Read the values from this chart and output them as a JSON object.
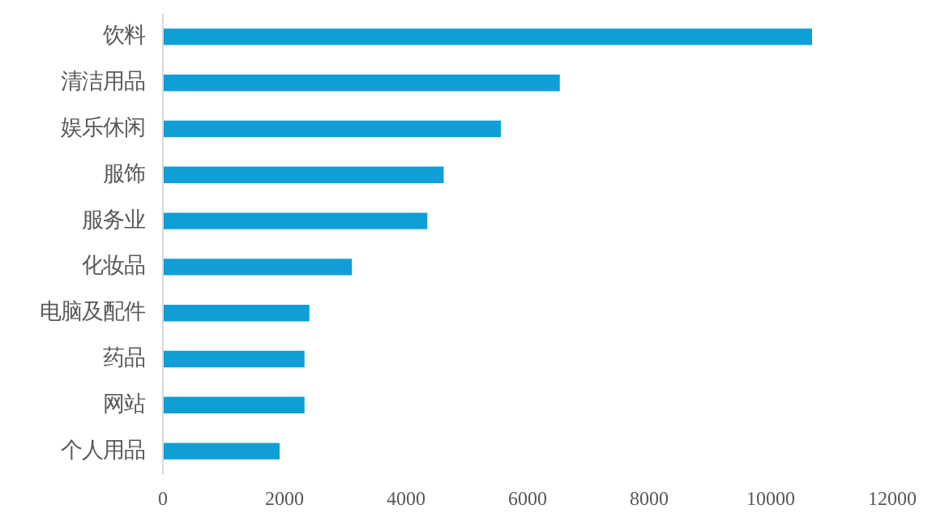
{
  "chart_data": {
    "type": "bar",
    "orientation": "horizontal",
    "categories": [
      "饮料",
      "清洁用品",
      "娱乐休闲",
      "服饰",
      "服务业",
      "化妆品",
      "电脑及配件",
      "药品",
      "网站",
      "个人用品"
    ],
    "values": [
      10680,
      6530,
      5560,
      4620,
      4350,
      3110,
      2410,
      2330,
      2330,
      1920
    ],
    "color": "#0f9fd6",
    "xlim": [
      0,
      12000
    ],
    "xticks": [
      0,
      2000,
      4000,
      6000,
      8000,
      10000,
      12000
    ],
    "grid": false
  }
}
